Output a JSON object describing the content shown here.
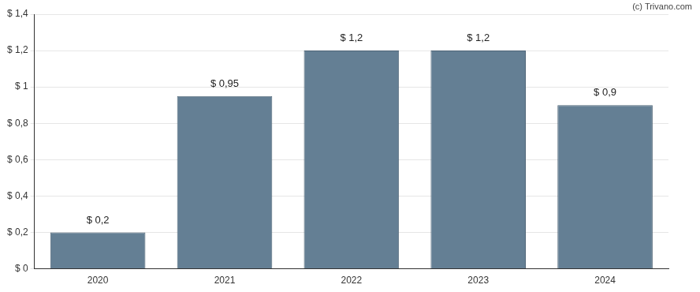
{
  "chart_data": {
    "type": "bar",
    "annotation": "(c) Trivano.com",
    "categories": [
      "2020",
      "2021",
      "2022",
      "2023",
      "2024"
    ],
    "values": [
      0.2,
      0.95,
      1.2,
      1.2,
      0.9
    ],
    "value_labels": [
      "$ 0,2",
      "$ 0,95",
      "$ 1,2",
      "$ 1,2",
      "$ 0,9"
    ],
    "data_labels": true,
    "color": "#647f94",
    "ylim": [
      0,
      1.4
    ],
    "yticks": [
      {
        "value": 0,
        "label": "$ 0"
      },
      {
        "value": 0.2,
        "label": "$ 0,2"
      },
      {
        "value": 0.4,
        "label": "$ 0,4"
      },
      {
        "value": 0.6,
        "label": "$ 0,6"
      },
      {
        "value": 0.8,
        "label": "$ 0,8"
      },
      {
        "value": 1,
        "label": "$ 1"
      },
      {
        "value": 1.2,
        "label": "$ 1,2"
      },
      {
        "value": 1.4,
        "label": "$ 1,4"
      }
    ],
    "grid": true
  }
}
